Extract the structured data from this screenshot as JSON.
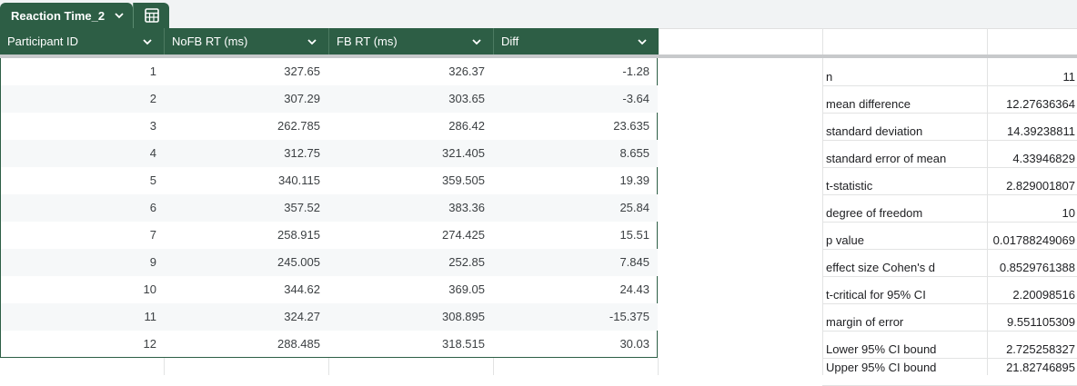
{
  "tab": {
    "name": "Reaction Time_2"
  },
  "table": {
    "columns": [
      "Participant ID",
      "NoFB RT (ms)",
      "FB RT (ms)",
      "Diff"
    ],
    "rows": [
      [
        "1",
        "327.65",
        "326.37",
        "-1.28"
      ],
      [
        "2",
        "307.29",
        "303.65",
        "-3.64"
      ],
      [
        "3",
        "262.785",
        "286.42",
        "23.635"
      ],
      [
        "4",
        "312.75",
        "321.405",
        "8.655"
      ],
      [
        "5",
        "340.115",
        "359.505",
        "19.39"
      ],
      [
        "6",
        "357.52",
        "383.36",
        "25.84"
      ],
      [
        "7",
        "258.915",
        "274.425",
        "15.51"
      ],
      [
        "9",
        "245.005",
        "252.85",
        "7.845"
      ],
      [
        "10",
        "344.62",
        "369.05",
        "24.43"
      ],
      [
        "11",
        "324.27",
        "308.895",
        "-15.375"
      ],
      [
        "12",
        "288.485",
        "318.515",
        "30.03"
      ]
    ]
  },
  "stats": [
    {
      "label": "n",
      "value": "11"
    },
    {
      "label": "mean difference",
      "value": "12.27636364"
    },
    {
      "label": "standard deviation",
      "value": "14.39238811"
    },
    {
      "label": "standard error of mean",
      "value": "4.33946829"
    },
    {
      "label": "t-statistic",
      "value": "2.829001807"
    },
    {
      "label": "degree of freedom",
      "value": "10"
    },
    {
      "label": "p value",
      "value": "0.01788249069"
    },
    {
      "label": "effect size Cohen's d",
      "value": "0.8529761388"
    },
    {
      "label": "t-critical for 95% CI",
      "value": "2.20098516"
    },
    {
      "label": "margin of error",
      "value": "9.551105309"
    },
    {
      "label": "Lower 95% CI bound",
      "value": "2.725258327"
    },
    {
      "label": "Upper 95% CI bound",
      "value": "21.82746895"
    }
  ],
  "colors": {
    "header_bg": "#2d5e45",
    "grid": "#e2e3e3",
    "alt_row": "#f6f8f9"
  },
  "icons": {
    "tab_chevron": "chevron-down-icon",
    "tab_menu": "table-icon",
    "column_menu": "chevron-down-icon"
  }
}
